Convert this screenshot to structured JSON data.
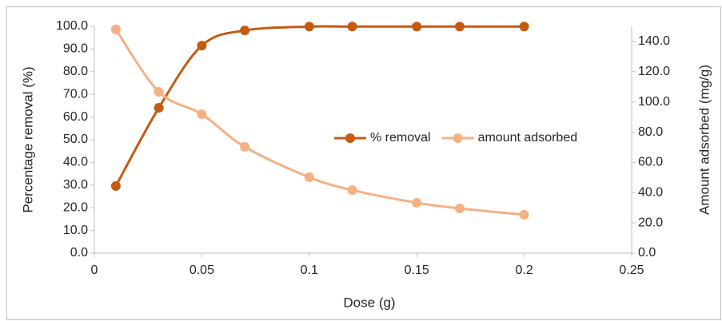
{
  "chart_data": {
    "type": "line",
    "x": [
      0.01,
      0.03,
      0.05,
      0.07,
      0.1,
      0.12,
      0.15,
      0.17,
      0.2
    ],
    "series": [
      {
        "name": "% removal",
        "color": "#c55a11",
        "values": [
          29.6,
          64.1,
          91.5,
          98.2,
          99.9,
          99.9,
          99.9,
          99.9,
          99.9
        ]
      },
      {
        "name": "amount adsorbed",
        "color": "#f4b183",
        "axis": "y2",
        "values": [
          148,
          106.7,
          91.9,
          70.3,
          50.2,
          41.7,
          33.3,
          29.6,
          25.4
        ]
      }
    ],
    "x_label": "Dose (g)",
    "y_label": "Percentage removal (%)",
    "y2_label": "Amount adsorbed (mg/g)",
    "xlim": [
      0,
      0.25
    ],
    "xticks": [
      0,
      0.05,
      0.1,
      0.15,
      0.2,
      0.25
    ],
    "ylim": [
      0,
      100
    ],
    "yticks": [
      {
        "value": 0,
        "label": "0.0"
      },
      {
        "value": 10,
        "label": "10.0"
      },
      {
        "value": 20,
        "label": "20.0"
      },
      {
        "value": 30,
        "label": "30.0"
      },
      {
        "value": 40,
        "label": "40.0"
      },
      {
        "value": 50,
        "label": "50.0"
      },
      {
        "value": 60,
        "label": "60.0"
      },
      {
        "value": 70,
        "label": "70.0"
      },
      {
        "value": 80,
        "label": "80.0"
      },
      {
        "value": 90,
        "label": "90.0"
      },
      {
        "value": 100,
        "label": "100.0"
      }
    ],
    "y2lim": [
      0,
      150
    ],
    "y2ticks": [
      {
        "value": 0,
        "label": "0.0"
      },
      {
        "value": 20,
        "label": "20.0"
      },
      {
        "value": 40,
        "label": "40.0"
      },
      {
        "value": 60,
        "label": "60.0"
      },
      {
        "value": 80,
        "label": "80.0"
      },
      {
        "value": 100,
        "label": "100.0"
      },
      {
        "value": 120,
        "label": "120.0"
      },
      {
        "value": 140,
        "label": "140.0"
      }
    ],
    "smooth": true,
    "legend": "right"
  }
}
